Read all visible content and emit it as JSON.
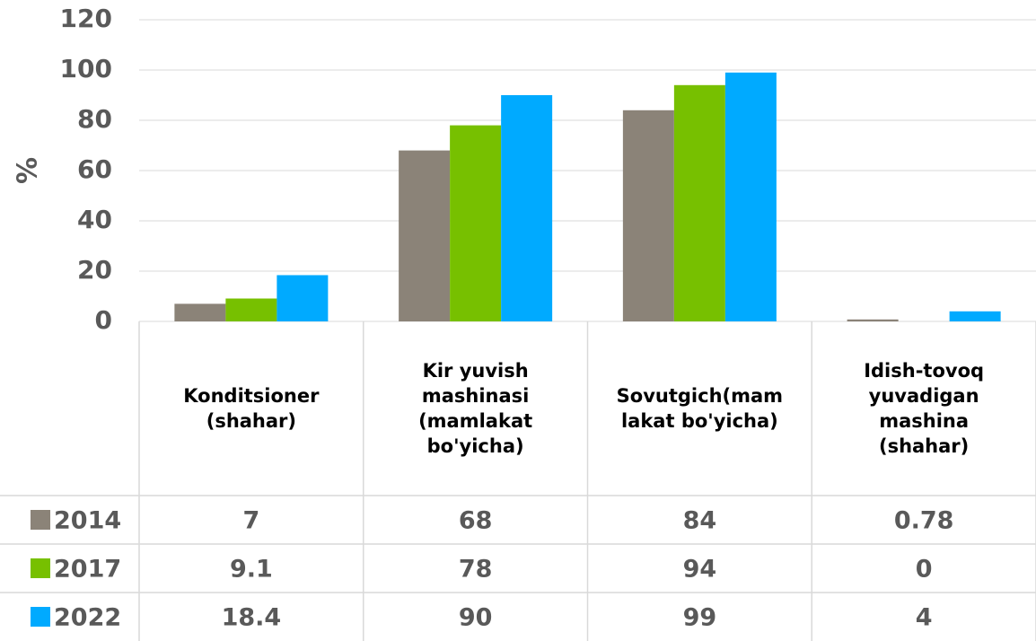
{
  "chart_data": {
    "type": "bar",
    "y_label": "%",
    "categories": [
      "Konditsioner (shahar)",
      "Kir yuvish mashinasi (mamlakat bo'yicha)",
      "Sovutgich(mamlakat bo'yicha)",
      "Idish-tovoq yuvadigan mashina (shahar)"
    ],
    "series": [
      {
        "name": "2014",
        "color": "#8b8378",
        "values": [
          7,
          68,
          84,
          0.78
        ]
      },
      {
        "name": "2017",
        "color": "#77c000",
        "values": [
          9.1,
          78,
          94,
          0
        ]
      },
      {
        "name": "2022",
        "color": "#00aaff",
        "values": [
          18.4,
          90,
          99,
          4
        ]
      }
    ],
    "ylim": [
      0,
      120
    ],
    "yticks": [
      0,
      20,
      40,
      60,
      80,
      100,
      120
    ],
    "grid": true,
    "data_table": true
  }
}
